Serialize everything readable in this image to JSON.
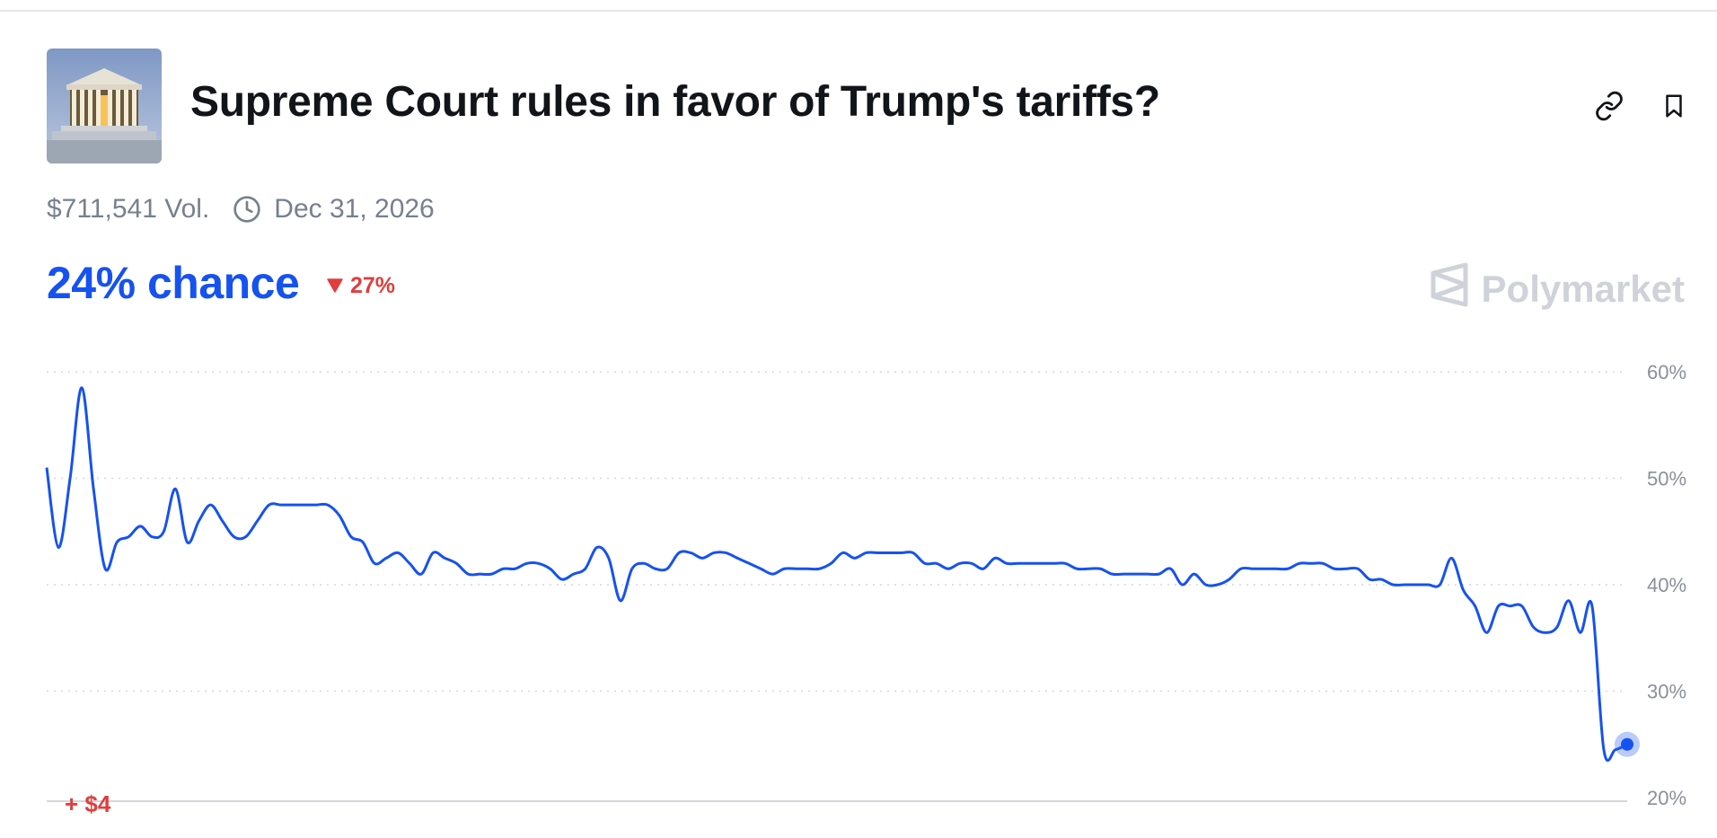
{
  "market": {
    "title": "Supreme Court rules in favor of Trump's tariffs?",
    "volume": "$711,541 Vol.",
    "end_date": "Dec 31, 2026",
    "chance": "24% chance",
    "change": "27%",
    "change_direction": "down",
    "brand": "Polymarket",
    "pnl": "+ $4"
  },
  "icons": {
    "link": "link-icon",
    "bookmark": "bookmark-icon",
    "clock": "clock-icon",
    "brand_logo": "polymarket-logo-icon",
    "change_arrow": "triangle-down-icon"
  },
  "colors": {
    "accent": "#1652f0",
    "negative": "#e23d3d",
    "muted": "#77808d"
  },
  "chart_data": {
    "type": "line",
    "y_tick_labels": [
      "60%",
      "50%",
      "40%",
      "30%",
      "20%"
    ],
    "ylim": [
      20,
      60
    ],
    "grid": true,
    "series": [
      {
        "values": [
          51,
          43.5,
          50,
          58.5,
          49,
          41.5,
          44,
          44.5,
          45.5,
          44.5,
          45,
          49,
          44,
          46,
          47.5,
          46,
          44.5,
          44.5,
          46,
          47.5,
          47.5,
          47.5,
          47.5,
          47.5,
          47.5,
          46.5,
          44.5,
          44,
          42,
          42.5,
          43,
          42,
          41,
          43,
          42.5,
          42,
          41,
          41,
          41,
          41.5,
          41.5,
          42,
          42,
          41.5,
          40.5,
          41,
          41.5,
          43.5,
          42.5,
          38.5,
          41.5,
          42,
          41.5,
          41.5,
          43,
          43,
          42.5,
          43,
          43,
          42.5,
          42,
          41.5,
          41,
          41.5,
          41.5,
          41.5,
          41.5,
          42,
          43,
          42.5,
          43,
          43,
          43,
          43,
          43,
          42,
          42,
          41.5,
          42,
          42,
          41.5,
          42.5,
          42,
          42,
          42,
          42,
          42,
          42,
          41.5,
          41.5,
          41.5,
          41,
          41,
          41,
          41,
          41,
          41.5,
          40,
          41,
          40,
          40,
          40.5,
          41.5,
          41.5,
          41.5,
          41.5,
          41.5,
          42,
          42,
          42,
          41.5,
          41.5,
          41.5,
          40.5,
          40.5,
          40,
          40,
          40,
          40,
          40,
          42.5,
          39.5,
          38,
          35.5,
          38,
          38,
          38,
          36,
          35.5,
          36,
          38.5,
          35.5,
          38,
          24.5,
          24.5,
          25
        ]
      }
    ]
  }
}
